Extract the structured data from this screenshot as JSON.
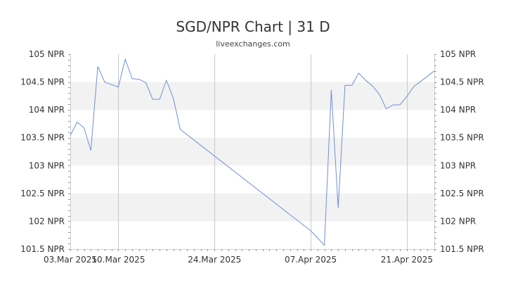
{
  "chart_data": {
    "type": "line",
    "title": "SGD/NPR Chart | 31 D",
    "subtitle": "liveexchanges.com",
    "xlabel": "",
    "ylabel": "",
    "ylim": [
      101.5,
      105
    ],
    "xlim": [
      "2025-03-03",
      "2025-04-25"
    ],
    "y_ticks": [
      {
        "value": 101.5,
        "label": "101.5 NPR"
      },
      {
        "value": 102,
        "label": "102 NPR"
      },
      {
        "value": 102.5,
        "label": "102.5 NPR"
      },
      {
        "value": 103,
        "label": "103 NPR"
      },
      {
        "value": 103.5,
        "label": "103.5 NPR"
      },
      {
        "value": 104,
        "label": "104 NPR"
      },
      {
        "value": 104.5,
        "label": "104.5 NPR"
      },
      {
        "value": 105,
        "label": "105 NPR"
      }
    ],
    "x_ticks": [
      {
        "date": "2025-03-03",
        "label": "03.Mar 2025"
      },
      {
        "date": "2025-03-10",
        "label": "10.Mar 2025"
      },
      {
        "date": "2025-03-24",
        "label": "24.Mar 2025"
      },
      {
        "date": "2025-04-07",
        "label": "07.Apr 2025"
      },
      {
        "date": "2025-04-21",
        "label": "21.Apr 2025"
      }
    ],
    "grid": true,
    "legend": "none",
    "line_color": "#6f8fd8",
    "band_color": "#f2f2f2",
    "series": [
      {
        "x": [
          "2025-03-03",
          "2025-03-04",
          "2025-03-05",
          "2025-03-06",
          "2025-03-07",
          "2025-03-08",
          "2025-03-10",
          "2025-03-11",
          "2025-03-12",
          "2025-03-13",
          "2025-03-14",
          "2025-03-15",
          "2025-03-16",
          "2025-03-17",
          "2025-03-18",
          "2025-03-19",
          "2025-04-07",
          "2025-04-09",
          "2025-04-10",
          "2025-04-11",
          "2025-04-12",
          "2025-04-13",
          "2025-04-14",
          "2025-04-15",
          "2025-04-16",
          "2025-04-17",
          "2025-04-18",
          "2025-04-19",
          "2025-04-20",
          "2025-04-21",
          "2025-04-22",
          "2025-04-23",
          "2025-04-25"
        ],
        "values": [
          103.54,
          103.78,
          103.68,
          103.27,
          104.78,
          104.5,
          104.41,
          104.91,
          104.56,
          104.55,
          104.49,
          104.19,
          104.19,
          104.53,
          104.21,
          103.65,
          101.83,
          101.57,
          104.36,
          102.24,
          104.44,
          104.44,
          104.66,
          104.53,
          104.43,
          104.28,
          104.02,
          104.09,
          104.09,
          104.24,
          104.42,
          104.51,
          104.7
        ]
      }
    ]
  }
}
